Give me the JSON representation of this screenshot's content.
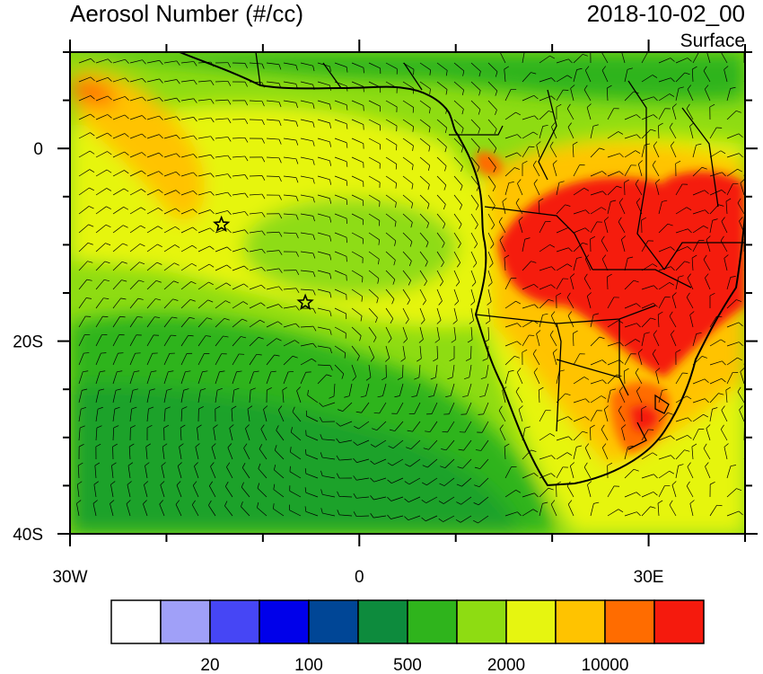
{
  "title": "Aerosol Number (#/cc)",
  "datetime": "2018-10-02_00",
  "level": "Surface",
  "map": {
    "lon_range": [
      -30,
      40
    ],
    "lat_range": [
      -40,
      10
    ],
    "lon_tick_labels": [
      {
        "lon": -30,
        "text": "30W"
      },
      {
        "lon": 0,
        "text": "0"
      },
      {
        "lon": 30,
        "text": "30E"
      }
    ],
    "lat_tick_labels": [
      {
        "lat": 0,
        "text": "0"
      },
      {
        "lat": -20,
        "text": "20S"
      },
      {
        "lat": -40,
        "text": "40S"
      }
    ],
    "markers": [
      {
        "name": "star-marker-1",
        "lon": -14.3,
        "lat": -7.9
      },
      {
        "name": "star-marker-2",
        "lon": -5.6,
        "lat": -16.0
      }
    ]
  },
  "colorbar": {
    "colors": [
      "#ffffff",
      "#a0a0f8",
      "#4646f5",
      "#0000ea",
      "#004696",
      "#0d8b3d",
      "#2fb41c",
      "#8edc12",
      "#e6f510",
      "#ffc300",
      "#ff6c00",
      "#f51a0d"
    ],
    "labels": [
      "20",
      "100",
      "500",
      "2000",
      "10000"
    ]
  }
}
